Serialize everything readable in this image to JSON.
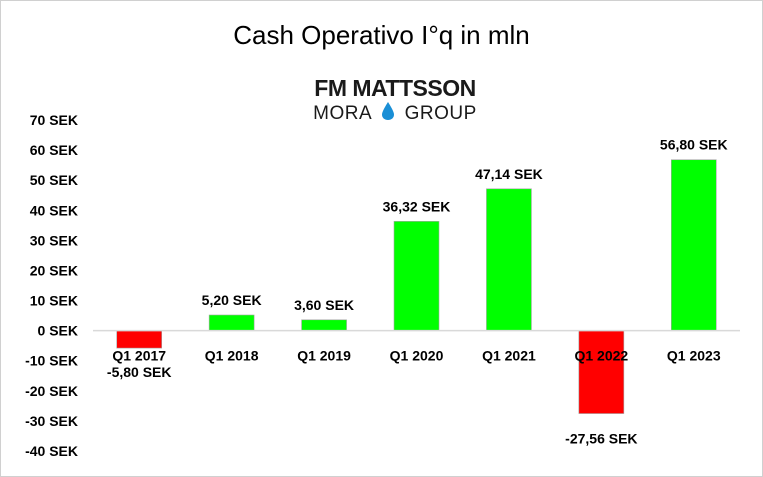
{
  "title": "Cash Operativo I°q in mln",
  "logo": {
    "line1": "FM MATTSSON",
    "line2_left": "MORA",
    "line2_right": "GROUP",
    "icon": "water-drop-icon",
    "icon_color": "#1a8fd6"
  },
  "chart_data": {
    "type": "bar",
    "title": "Cash Operativo I°q in mln",
    "categories": [
      "Q1 2017",
      "Q1 2018",
      "Q1 2019",
      "Q1 2020",
      "Q1 2021",
      "Q1 2022",
      "Q1 2023"
    ],
    "values": [
      -5.8,
      5.2,
      3.6,
      36.32,
      47.14,
      -27.56,
      56.8
    ],
    "data_labels": [
      "-5,80 SEK",
      "5,20 SEK",
      "3,60 SEK",
      "36,32 SEK",
      "47,14 SEK",
      "-27,56 SEK",
      "56,80 SEK"
    ],
    "ylim": [
      -40,
      70
    ],
    "yticks": [
      70,
      60,
      50,
      40,
      30,
      20,
      10,
      0,
      -10,
      -20,
      -30,
      -40
    ],
    "ytick_labels": [
      "70 SEK",
      "60 SEK",
      "50 SEK",
      "40 SEK",
      "30 SEK",
      "20 SEK",
      "10 SEK",
      "0 SEK",
      "-10 SEK",
      "-20 SEK",
      "-30 SEK",
      "-40 SEK"
    ],
    "grid": false,
    "colors": {
      "positive": "#00ff00",
      "negative": "#ff0000",
      "axis": "#d9d9d9"
    }
  }
}
